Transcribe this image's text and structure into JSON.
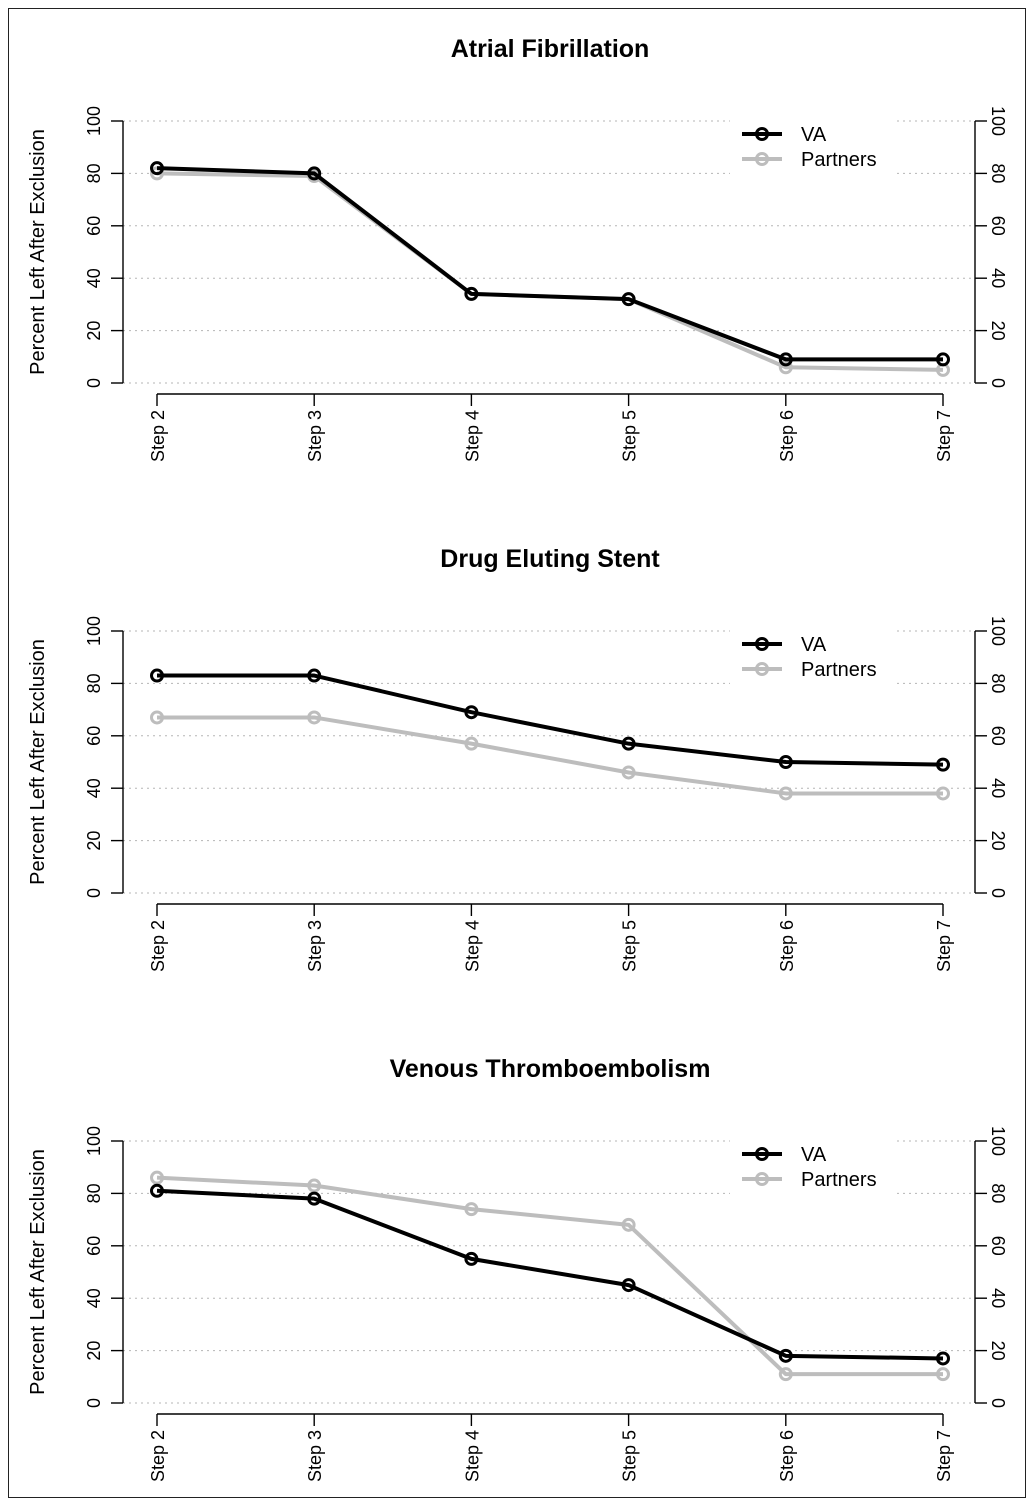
{
  "chart_data": [
    {
      "type": "line",
      "title": "Atrial Fibrillation",
      "ylabel": "Percent Left After Exclusion",
      "xlabel": "",
      "categories": [
        "Step 2",
        "Step 3",
        "Step 4",
        "Step 5",
        "Step 6",
        "Step 7"
      ],
      "ylim": [
        0,
        100
      ],
      "yticks": [
        0,
        20,
        40,
        60,
        80,
        100
      ],
      "grid": true,
      "secondary_y_axis": true,
      "legend_position": "top-right",
      "series": [
        {
          "name": "VA",
          "color": "#000000",
          "values": [
            82,
            80,
            34,
            32,
            9,
            9
          ]
        },
        {
          "name": "Partners",
          "color": "#bdbdbd",
          "values": [
            80,
            79,
            34,
            32,
            6,
            5
          ]
        }
      ]
    },
    {
      "type": "line",
      "title": "Drug Eluting Stent",
      "ylabel": "Percent Left After Exclusion",
      "xlabel": "",
      "categories": [
        "Step 2",
        "Step 3",
        "Step 4",
        "Step 5",
        "Step 6",
        "Step 7"
      ],
      "ylim": [
        0,
        100
      ],
      "yticks": [
        0,
        20,
        40,
        60,
        80,
        100
      ],
      "grid": true,
      "secondary_y_axis": true,
      "legend_position": "top-right",
      "series": [
        {
          "name": "VA",
          "color": "#000000",
          "values": [
            83,
            83,
            69,
            57,
            50,
            49
          ]
        },
        {
          "name": "Partners",
          "color": "#bdbdbd",
          "values": [
            67,
            67,
            57,
            46,
            38,
            38
          ]
        }
      ]
    },
    {
      "type": "line",
      "title": "Venous Thromboembolism",
      "ylabel": "Percent Left After Exclusion",
      "xlabel": "",
      "categories": [
        "Step 2",
        "Step 3",
        "Step 4",
        "Step 5",
        "Step 6",
        "Step 7"
      ],
      "ylim": [
        0,
        100
      ],
      "yticks": [
        0,
        20,
        40,
        60,
        80,
        100
      ],
      "grid": true,
      "secondary_y_axis": true,
      "legend_position": "top-right",
      "series": [
        {
          "name": "VA",
          "color": "#000000",
          "values": [
            81,
            78,
            55,
            45,
            18,
            17
          ]
        },
        {
          "name": "Partners",
          "color": "#bdbdbd",
          "values": [
            86,
            83,
            74,
            68,
            11,
            11
          ]
        }
      ]
    }
  ]
}
